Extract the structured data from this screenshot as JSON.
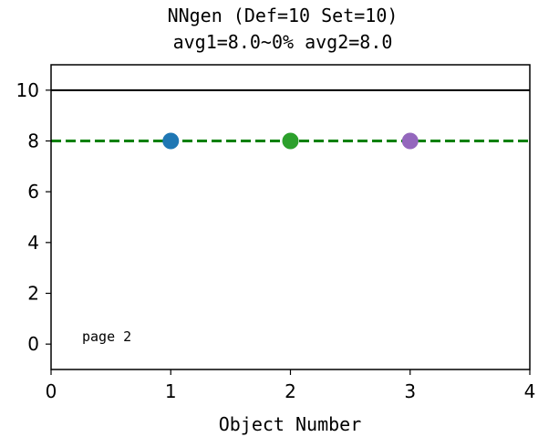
{
  "chart_data": {
    "type": "scatter",
    "title_line1": "NNgen (Def=10 Set=10)",
    "title_line2": "avg1=8.0~0% avg2=8.0",
    "xlabel": "Object Number",
    "ylabel": "",
    "xlim": [
      0,
      4
    ],
    "ylim": [
      -1,
      11
    ],
    "xticks": [
      "0",
      "1",
      "2",
      "3",
      "4"
    ],
    "yticks": [
      "0",
      "2",
      "4",
      "6",
      "8",
      "10"
    ],
    "points": [
      {
        "x": 1,
        "y": 8,
        "color": "#1f77b4"
      },
      {
        "x": 2,
        "y": 8,
        "color": "#2ca02c"
      },
      {
        "x": 3,
        "y": 8,
        "color": "#9467bd"
      }
    ],
    "reference_lines": [
      {
        "y": 10,
        "style": "solid",
        "color": "#000000"
      },
      {
        "y": 8,
        "style": "dashed",
        "color": "#008000"
      }
    ],
    "annotation": "page 2",
    "grid": false
  }
}
